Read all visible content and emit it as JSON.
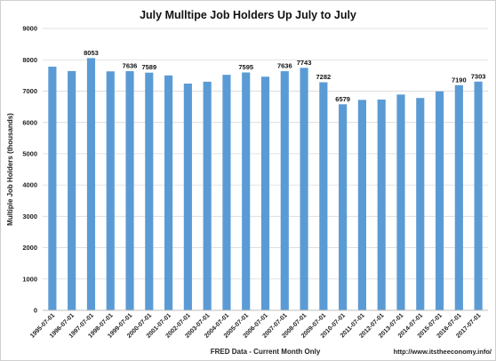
{
  "chart_data": {
    "type": "bar",
    "title": "July Mulltipe Job Holders Up July to July",
    "xlabel": "FRED Data - Current Month Only",
    "ylabel": "Multiple Job Holders (thousands)",
    "source_note": "http://www.itstheeconomy.info/",
    "ylim": [
      0,
      9000
    ],
    "yticks": [
      0,
      1000,
      2000,
      3000,
      4000,
      5000,
      6000,
      7000,
      8000,
      9000
    ],
    "grid": true,
    "bar_color": "#5b9bd5",
    "categories": [
      "1995-07-01",
      "1996-07-01",
      "1997-07-01",
      "1998-07-01",
      "1999-07-01",
      "2000-07-01",
      "2001-07-01",
      "2002-07-01",
      "2003-07-01",
      "2004-07-01",
      "2005-07-01",
      "2006-07-01",
      "2007-07-01",
      "2008-07-01",
      "2009-07-01",
      "2010-07-01",
      "2011-07-01",
      "2012-07-01",
      "2013-07-01",
      "2014-07-01",
      "2015-07-01",
      "2016-07-01",
      "2017-07-01"
    ],
    "values": [
      7780,
      7640,
      8053,
      7630,
      7636,
      7589,
      7500,
      7240,
      7300,
      7520,
      7595,
      7460,
      7636,
      7743,
      7282,
      6579,
      6720,
      6730,
      6890,
      6780,
      6990,
      7190,
      7303
    ],
    "data_labels": [
      "",
      "",
      "8053",
      "",
      "7636",
      "7589",
      "",
      "",
      "",
      "",
      "7595",
      "",
      "7636",
      "7743",
      "7282",
      "6579",
      "",
      "",
      "",
      "",
      "",
      "7190",
      "7303"
    ]
  }
}
